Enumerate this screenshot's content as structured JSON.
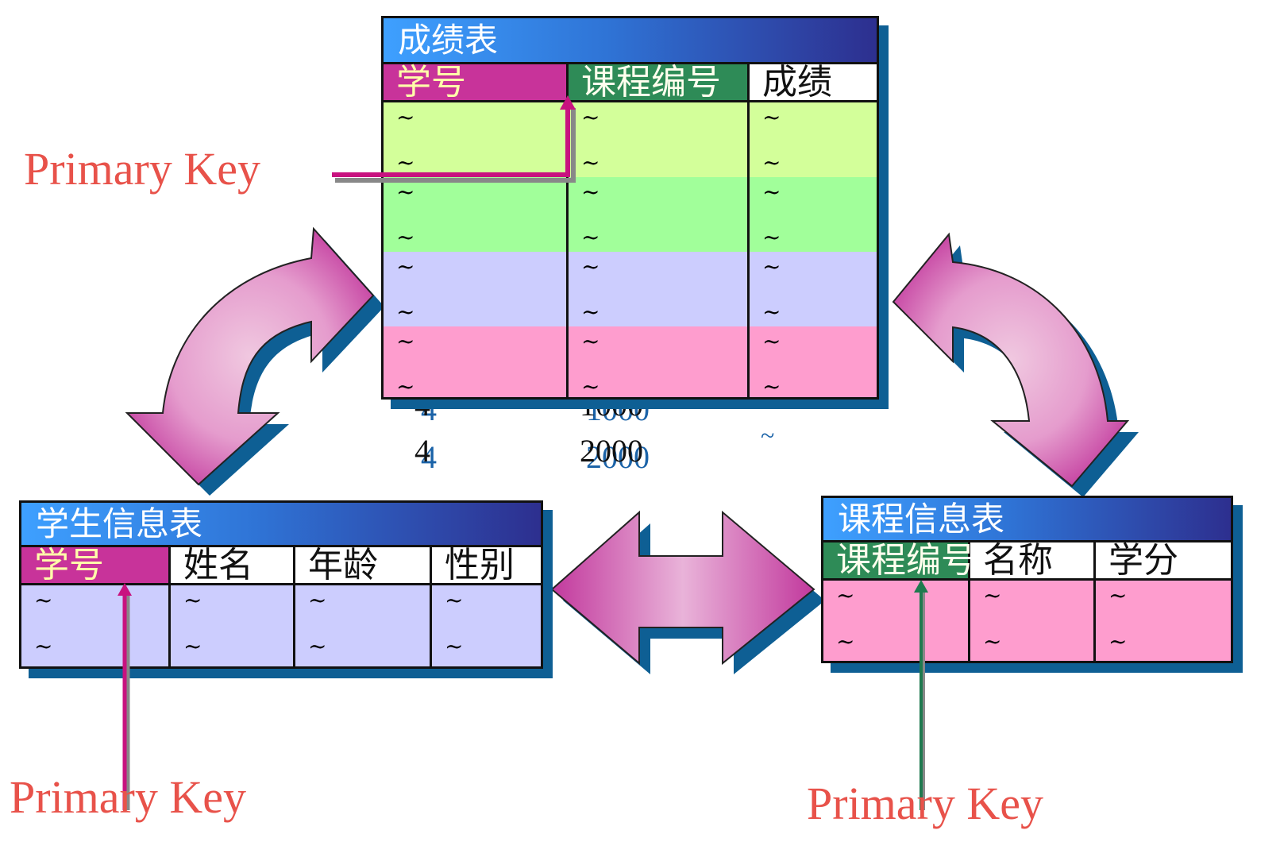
{
  "score_table": {
    "title": "成绩表",
    "columns": [
      "学号",
      "课程编号",
      "成绩"
    ],
    "row_colors": [
      "#d3ff9a",
      "#a1ff9a",
      "#cccdfe",
      "#fe9dce"
    ],
    "cell_value": "~"
  },
  "student_table": {
    "title": "学生信息表",
    "columns": [
      "学号",
      "姓名",
      "年龄",
      "性别"
    ],
    "row_color": "#cccdfe",
    "cell_value": "~"
  },
  "course_table": {
    "title": "课程信息表",
    "columns": [
      "课程编号",
      "名称",
      "学分"
    ],
    "row_color": "#fe9dce",
    "cell_value": "~"
  },
  "primary_key_label": "Primary Key",
  "overflow_rows": [
    {
      "id": "4",
      "course": "1000",
      "score": ""
    },
    {
      "id": "4",
      "course": "2000",
      "score": "~"
    }
  ],
  "colors": {
    "title_gradient_start": "#3ea0ff",
    "title_gradient_end": "#2d2f8f",
    "student_pk": "#c8339a",
    "course_pk": "#2e8b57",
    "label_red": "#e8524a",
    "arrow_pink": "#d15cb0",
    "shadow_blue": "#0e5f94"
  }
}
